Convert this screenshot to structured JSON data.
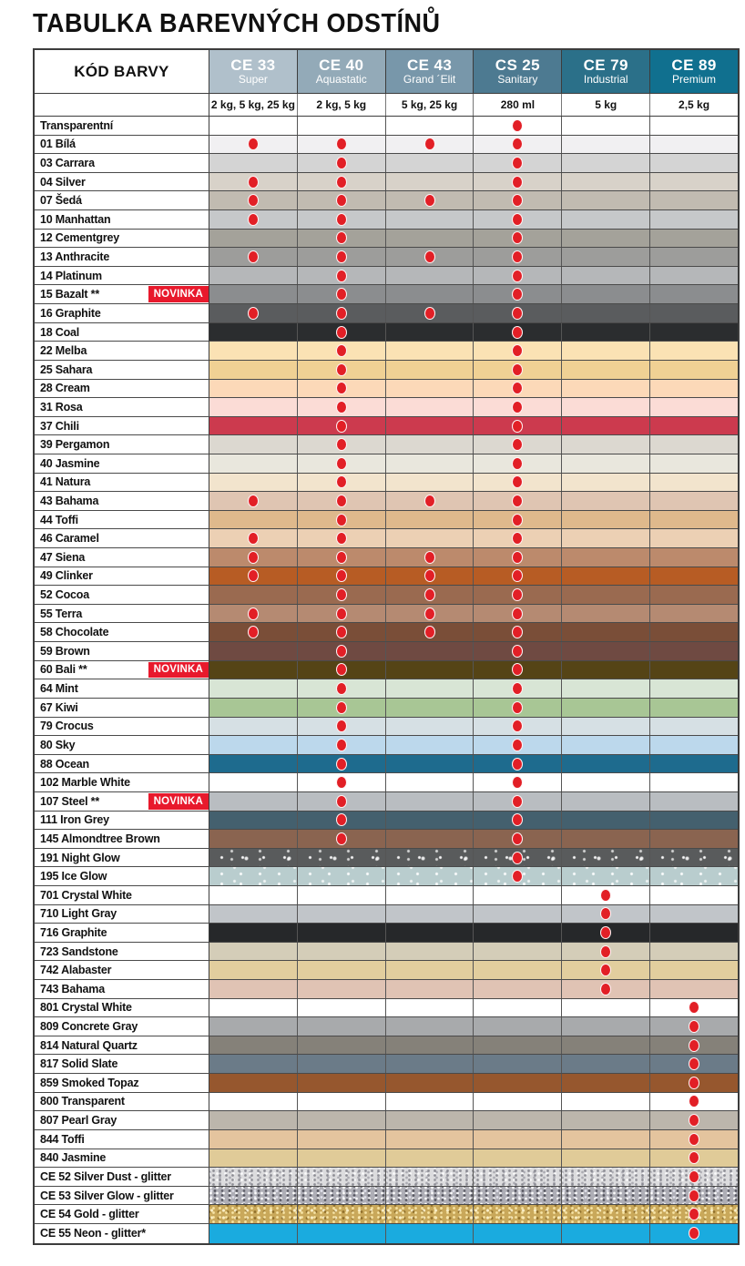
{
  "title": "TABULKA BAREVNÝCH ODSTÍNŮ",
  "dot_color": "#e21f26",
  "novinka": {
    "label": "NOVINKA",
    "bg": "#e8192c"
  },
  "table": {
    "label_header": "KÓD BARVY",
    "columns": [
      {
        "code": "CE 33",
        "name": "Super",
        "sizes": "2 kg, 5 kg, 25 kg",
        "color": "#b0c0cb"
      },
      {
        "code": "CE 40",
        "name": "Aquastatic",
        "sizes": "2 kg, 5 kg",
        "color": "#93aab8"
      },
      {
        "code": "CE 43",
        "name": "Grand ´Elit",
        "sizes": "5 kg, 25 kg",
        "color": "#7897aa"
      },
      {
        "code": "CS 25",
        "name": "Sanitary",
        "sizes": "280 ml",
        "color": "#4d7a91"
      },
      {
        "code": "CE 79",
        "name": "Industrial",
        "sizes": "5 kg",
        "color": "#2b7089"
      },
      {
        "code": "CE 89",
        "name": "Premium",
        "sizes": "2,5 kg",
        "color": "#10708f"
      }
    ],
    "rows": [
      {
        "label": "Transparentní",
        "swatch": "#ffffff",
        "texture": null,
        "novinka": false,
        "dots": [
          0,
          0,
          0,
          1,
          0,
          0
        ]
      },
      {
        "label": "01 Bílá",
        "swatch": "#f1f0f2",
        "texture": null,
        "novinka": false,
        "dots": [
          1,
          1,
          1,
          1,
          0,
          0
        ]
      },
      {
        "label": "03 Carrara",
        "swatch": "#d4d4d4",
        "texture": null,
        "novinka": false,
        "dots": [
          0,
          1,
          0,
          1,
          0,
          0
        ]
      },
      {
        "label": "04 Silver",
        "swatch": "#d8d2c9",
        "texture": null,
        "novinka": false,
        "dots": [
          1,
          1,
          0,
          1,
          0,
          0
        ]
      },
      {
        "label": "07 Šedá",
        "swatch": "#c1bbb1",
        "texture": null,
        "novinka": false,
        "dots": [
          1,
          1,
          1,
          1,
          0,
          0
        ]
      },
      {
        "label": "10 Manhattan",
        "swatch": "#c6c8ca",
        "texture": null,
        "novinka": false,
        "dots": [
          1,
          1,
          0,
          1,
          0,
          0
        ]
      },
      {
        "label": "12 Cementgrey",
        "swatch": "#a4a29a",
        "texture": null,
        "novinka": false,
        "dots": [
          0,
          1,
          0,
          1,
          0,
          0
        ]
      },
      {
        "label": "13 Anthracite",
        "swatch": "#9d9d9b",
        "texture": null,
        "novinka": false,
        "dots": [
          1,
          1,
          1,
          1,
          0,
          0
        ]
      },
      {
        "label": "14 Platinum",
        "swatch": "#b5b7b9",
        "texture": null,
        "novinka": false,
        "dots": [
          0,
          1,
          0,
          1,
          0,
          0
        ]
      },
      {
        "label": "15 Bazalt **",
        "swatch": "#8b8d8f",
        "texture": null,
        "novinka": true,
        "dots": [
          0,
          1,
          0,
          1,
          0,
          0
        ]
      },
      {
        "label": "16 Graphite",
        "swatch": "#5a5c5e",
        "texture": null,
        "novinka": false,
        "dots": [
          1,
          1,
          1,
          1,
          0,
          0
        ]
      },
      {
        "label": "18 Coal",
        "swatch": "#2b2d2f",
        "texture": null,
        "novinka": false,
        "dots": [
          0,
          1,
          0,
          1,
          0,
          0
        ]
      },
      {
        "label": "22 Melba",
        "swatch": "#fbe2b4",
        "texture": null,
        "novinka": false,
        "dots": [
          0,
          1,
          0,
          1,
          0,
          0
        ]
      },
      {
        "label": "25 Sahara",
        "swatch": "#f0d194",
        "texture": null,
        "novinka": false,
        "dots": [
          0,
          1,
          0,
          1,
          0,
          0
        ]
      },
      {
        "label": "28 Cream",
        "swatch": "#fcd9b8",
        "texture": null,
        "novinka": false,
        "dots": [
          0,
          1,
          0,
          1,
          0,
          0
        ]
      },
      {
        "label": "31 Rosa",
        "swatch": "#fbdcd6",
        "texture": null,
        "novinka": false,
        "dots": [
          0,
          1,
          0,
          1,
          0,
          0
        ]
      },
      {
        "label": "37 Chili",
        "swatch": "#cc3a4e",
        "texture": null,
        "novinka": false,
        "dots": [
          0,
          1,
          0,
          1,
          0,
          0
        ]
      },
      {
        "label": "39 Pergamon",
        "swatch": "#dcd8d0",
        "texture": null,
        "novinka": false,
        "dots": [
          0,
          1,
          0,
          1,
          0,
          0
        ]
      },
      {
        "label": "40 Jasmine",
        "swatch": "#e9e7dd",
        "texture": null,
        "novinka": false,
        "dots": [
          0,
          1,
          0,
          1,
          0,
          0
        ]
      },
      {
        "label": "41 Natura",
        "swatch": "#f2e4cd",
        "texture": null,
        "novinka": false,
        "dots": [
          0,
          1,
          0,
          1,
          0,
          0
        ]
      },
      {
        "label": "43 Bahama",
        "swatch": "#dfc5b2",
        "texture": null,
        "novinka": false,
        "dots": [
          1,
          1,
          1,
          1,
          0,
          0
        ]
      },
      {
        "label": "44 Toffi",
        "swatch": "#dfb98c",
        "texture": null,
        "novinka": false,
        "dots": [
          0,
          1,
          0,
          1,
          0,
          0
        ]
      },
      {
        "label": "46 Caramel",
        "swatch": "#ecd0b4",
        "texture": null,
        "novinka": false,
        "dots": [
          1,
          1,
          0,
          1,
          0,
          0
        ]
      },
      {
        "label": "47 Siena",
        "swatch": "#bc8a6c",
        "texture": null,
        "novinka": false,
        "dots": [
          1,
          1,
          1,
          1,
          0,
          0
        ]
      },
      {
        "label": "49 Clinker",
        "swatch": "#b75c24",
        "texture": null,
        "novinka": false,
        "dots": [
          1,
          1,
          1,
          1,
          0,
          0
        ]
      },
      {
        "label": "52 Cocoa",
        "swatch": "#9a6a50",
        "texture": null,
        "novinka": false,
        "dots": [
          0,
          1,
          1,
          1,
          0,
          0
        ]
      },
      {
        "label": "55 Terra",
        "swatch": "#b58a72",
        "texture": null,
        "novinka": false,
        "dots": [
          1,
          1,
          1,
          1,
          0,
          0
        ]
      },
      {
        "label": "58 Chocolate",
        "swatch": "#7a4e38",
        "texture": null,
        "novinka": false,
        "dots": [
          1,
          1,
          1,
          1,
          0,
          0
        ]
      },
      {
        "label": "59 Brown",
        "swatch": "#6f4a42",
        "texture": null,
        "novinka": false,
        "dots": [
          0,
          1,
          0,
          1,
          0,
          0
        ]
      },
      {
        "label": "60 Bali **",
        "swatch": "#554416",
        "texture": null,
        "novinka": true,
        "dots": [
          0,
          1,
          0,
          1,
          0,
          0
        ]
      },
      {
        "label": "64 Mint",
        "swatch": "#d8e5d5",
        "texture": null,
        "novinka": false,
        "dots": [
          0,
          1,
          0,
          1,
          0,
          0
        ]
      },
      {
        "label": "67 Kiwi",
        "swatch": "#a8c695",
        "texture": null,
        "novinka": false,
        "dots": [
          0,
          1,
          0,
          1,
          0,
          0
        ]
      },
      {
        "label": "79 Crocus",
        "swatch": "#d6e0e4",
        "texture": null,
        "novinka": false,
        "dots": [
          0,
          1,
          0,
          1,
          0,
          0
        ]
      },
      {
        "label": "80 Sky",
        "swatch": "#bcd8ec",
        "texture": null,
        "novinka": false,
        "dots": [
          0,
          1,
          0,
          1,
          0,
          0
        ]
      },
      {
        "label": "88 Ocean",
        "swatch": "#1e6b8e",
        "texture": null,
        "novinka": false,
        "dots": [
          0,
          1,
          0,
          1,
          0,
          0
        ]
      },
      {
        "label": "102 Marble White",
        "swatch": "#ffffff",
        "texture": null,
        "novinka": false,
        "dots": [
          0,
          1,
          0,
          1,
          0,
          0
        ]
      },
      {
        "label": "107 Steel **",
        "swatch": "#b9bdc1",
        "texture": null,
        "novinka": true,
        "dots": [
          0,
          1,
          0,
          1,
          0,
          0
        ]
      },
      {
        "label": "111 Iron Grey",
        "swatch": "#44606e",
        "texture": null,
        "novinka": false,
        "dots": [
          0,
          1,
          0,
          1,
          0,
          0
        ]
      },
      {
        "label": "145 Almondtree Brown",
        "swatch": "#8a6450",
        "texture": null,
        "novinka": false,
        "dots": [
          0,
          1,
          0,
          1,
          0,
          0
        ]
      },
      {
        "label": "191 Night Glow",
        "swatch": "#595b5c",
        "texture": "night-glow",
        "novinka": false,
        "dots": [
          0,
          0,
          0,
          1,
          0,
          0
        ]
      },
      {
        "label": "195 Ice Glow",
        "swatch": "#b9cdce",
        "texture": "ice-glow",
        "novinka": false,
        "dots": [
          0,
          0,
          0,
          1,
          0,
          0
        ]
      },
      {
        "label": "701 Crystal White",
        "swatch": "#ffffff",
        "texture": null,
        "novinka": false,
        "dots": [
          0,
          0,
          0,
          0,
          1,
          0
        ]
      },
      {
        "label": "710 Light Gray",
        "swatch": "#c1c5c9",
        "texture": null,
        "novinka": false,
        "dots": [
          0,
          0,
          0,
          0,
          1,
          0
        ]
      },
      {
        "label": "716 Graphite",
        "swatch": "#26282a",
        "texture": null,
        "novinka": false,
        "dots": [
          0,
          0,
          0,
          0,
          1,
          0
        ]
      },
      {
        "label": "723 Sandstone",
        "swatch": "#d4cdb8",
        "texture": null,
        "novinka": false,
        "dots": [
          0,
          0,
          0,
          0,
          1,
          0
        ]
      },
      {
        "label": "742 Alabaster",
        "swatch": "#e2ce9e",
        "texture": null,
        "novinka": false,
        "dots": [
          0,
          0,
          0,
          0,
          1,
          0
        ]
      },
      {
        "label": "743 Bahama",
        "swatch": "#e0c3b4",
        "texture": null,
        "novinka": false,
        "dots": [
          0,
          0,
          0,
          0,
          1,
          0
        ]
      },
      {
        "label": "801 Crystal White",
        "swatch": "#ffffff",
        "texture": null,
        "novinka": false,
        "dots": [
          0,
          0,
          0,
          0,
          0,
          1
        ]
      },
      {
        "label": "809 Concrete Gray",
        "swatch": "#a8aaac",
        "texture": null,
        "novinka": false,
        "dots": [
          0,
          0,
          0,
          0,
          0,
          1
        ]
      },
      {
        "label": "814 Natural Quartz",
        "swatch": "#858179",
        "texture": null,
        "novinka": false,
        "dots": [
          0,
          0,
          0,
          0,
          0,
          1
        ]
      },
      {
        "label": "817 Solid Slate",
        "swatch": "#6b7b88",
        "texture": null,
        "novinka": false,
        "dots": [
          0,
          0,
          0,
          0,
          0,
          1
        ]
      },
      {
        "label": "859 Smoked Topaz",
        "swatch": "#96572e",
        "texture": null,
        "novinka": false,
        "dots": [
          0,
          0,
          0,
          0,
          0,
          1
        ]
      },
      {
        "label": "800 Transparent",
        "swatch": "#ffffff",
        "texture": null,
        "novinka": false,
        "dots": [
          0,
          0,
          0,
          0,
          0,
          1
        ]
      },
      {
        "label": "807 Pearl Gray",
        "swatch": "#bcb6ac",
        "texture": null,
        "novinka": false,
        "dots": [
          0,
          0,
          0,
          0,
          0,
          1
        ]
      },
      {
        "label": "844 Toffi",
        "swatch": "#e4c49e",
        "texture": null,
        "novinka": false,
        "dots": [
          0,
          0,
          0,
          0,
          0,
          1
        ]
      },
      {
        "label": "840 Jasmine",
        "swatch": "#e0cb98",
        "texture": null,
        "novinka": false,
        "dots": [
          0,
          0,
          0,
          0,
          0,
          1
        ]
      },
      {
        "label": "CE 52 Silver Dust - glitter",
        "swatch": "#dcdcde",
        "texture": "silver-dust",
        "novinka": false,
        "dots": [
          0,
          0,
          0,
          0,
          0,
          1
        ]
      },
      {
        "label": "CE 53 Silver Glow - glitter",
        "swatch": "#aeaeb6",
        "texture": "silver-glow",
        "novinka": false,
        "dots": [
          0,
          0,
          0,
          0,
          0,
          1
        ]
      },
      {
        "label": "CE 54 Gold - glitter",
        "swatch": "#c9a85a",
        "texture": "gold",
        "novinka": false,
        "dots": [
          0,
          0,
          0,
          0,
          0,
          1
        ]
      },
      {
        "label": "CE 55 Neon - glitter*",
        "swatch": "#1aabdf",
        "texture": null,
        "novinka": false,
        "dots": [
          0,
          0,
          0,
          0,
          0,
          1
        ]
      }
    ]
  }
}
